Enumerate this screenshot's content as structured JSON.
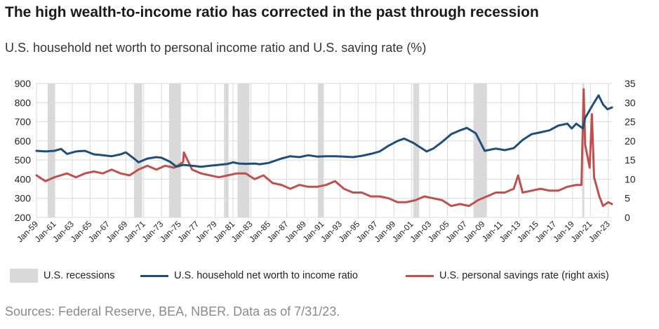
{
  "title": "The high wealth-to-income ratio has corrected in the past through recession",
  "subtitle": "U.S. household net worth to personal income ratio and U.S. saving rate (%)",
  "source": "Sources: Federal Reserve, BEA, NBER. Data as of 7/31/23.",
  "legend": {
    "recessions": "U.S. recessions",
    "networth": "U.S. household net worth to income ratio",
    "savings": "U.S. personal savings rate (right axis)"
  },
  "colors": {
    "networth": "#1f4e79",
    "savings": "#c0504d",
    "recession": "#d9d9d9",
    "grid": "#d9d9d9",
    "axis_text": "#222222"
  },
  "chart_data": {
    "type": "line",
    "x_range": [
      "1959-01",
      "2023-06"
    ],
    "x_ticks": [
      "Jan-59",
      "Jan-61",
      "Jan-63",
      "Jan-65",
      "Jan-67",
      "Jan-69",
      "Jan-71",
      "Jan-73",
      "Jan-75",
      "Jan-77",
      "Jan-79",
      "Jan-81",
      "Jan-83",
      "Jan-85",
      "Jan-87",
      "Jan-89",
      "Jan-91",
      "Jan-93",
      "Jan-95",
      "Jan-97",
      "Jan-99",
      "Jan-01",
      "Jan-03",
      "Jan-05",
      "Jan-07",
      "Jan-09",
      "Jan-11",
      "Jan-13",
      "Jan-15",
      "Jan-17",
      "Jan-19",
      "Jan-21",
      "Jan-23"
    ],
    "y_left": {
      "min": 200,
      "max": 900,
      "ticks": [
        200,
        300,
        400,
        500,
        600,
        700,
        800,
        900
      ]
    },
    "y_right": {
      "min": 0,
      "max": 35,
      "ticks": [
        0,
        5,
        10,
        15,
        20,
        25,
        30,
        35
      ]
    },
    "grid": true,
    "legend_position": "bottom",
    "recessions": [
      [
        "1960-04",
        "1961-02"
      ],
      [
        "1969-12",
        "1970-11"
      ],
      [
        "1973-11",
        "1975-03"
      ],
      [
        "1980-01",
        "1980-07"
      ],
      [
        "1981-07",
        "1982-11"
      ],
      [
        "1990-07",
        "1991-03"
      ],
      [
        "2001-03",
        "2001-11"
      ],
      [
        "2007-12",
        "2009-06"
      ],
      [
        "2020-02",
        "2020-04"
      ]
    ],
    "series": [
      {
        "name": "U.S. household net worth to income ratio",
        "axis": "left",
        "points": [
          [
            "1959-01",
            548
          ],
          [
            "1960-01",
            545
          ],
          [
            "1961-01",
            548
          ],
          [
            "1961-10",
            558
          ],
          [
            "1962-06",
            532
          ],
          [
            "1963-06",
            545
          ],
          [
            "1964-06",
            548
          ],
          [
            "1965-06",
            530
          ],
          [
            "1966-06",
            525
          ],
          [
            "1967-06",
            520
          ],
          [
            "1968-06",
            530
          ],
          [
            "1969-01",
            540
          ],
          [
            "1970-01",
            505
          ],
          [
            "1970-06",
            488
          ],
          [
            "1971-06",
            508
          ],
          [
            "1972-06",
            515
          ],
          [
            "1973-01",
            512
          ],
          [
            "1974-01",
            490
          ],
          [
            "1974-09",
            465
          ],
          [
            "1975-06",
            475
          ],
          [
            "1976-06",
            470
          ],
          [
            "1977-06",
            465
          ],
          [
            "1978-06",
            470
          ],
          [
            "1979-06",
            475
          ],
          [
            "1980-06",
            480
          ],
          [
            "1981-01",
            488
          ],
          [
            "1981-09",
            482
          ],
          [
            "1982-06",
            480
          ],
          [
            "1983-06",
            482
          ],
          [
            "1984-01",
            478
          ],
          [
            "1985-01",
            485
          ],
          [
            "1986-06",
            508
          ],
          [
            "1987-06",
            520
          ],
          [
            "1988-06",
            515
          ],
          [
            "1989-06",
            525
          ],
          [
            "1990-06",
            518
          ],
          [
            "1991-06",
            520
          ],
          [
            "1992-06",
            520
          ],
          [
            "1993-06",
            518
          ],
          [
            "1994-06",
            515
          ],
          [
            "1995-06",
            522
          ],
          [
            "1996-06",
            532
          ],
          [
            "1997-06",
            545
          ],
          [
            "1998-06",
            575
          ],
          [
            "1999-06",
            600
          ],
          [
            "2000-03",
            612
          ],
          [
            "2001-03",
            590
          ],
          [
            "2002-09",
            545
          ],
          [
            "2003-06",
            560
          ],
          [
            "2004-06",
            595
          ],
          [
            "2005-06",
            635
          ],
          [
            "2006-06",
            655
          ],
          [
            "2007-03",
            668
          ],
          [
            "2008-03",
            640
          ],
          [
            "2009-03",
            548
          ],
          [
            "2010-06",
            560
          ],
          [
            "2011-06",
            552
          ],
          [
            "2012-06",
            562
          ],
          [
            "2013-06",
            605
          ],
          [
            "2014-06",
            635
          ],
          [
            "2015-06",
            645
          ],
          [
            "2016-06",
            655
          ],
          [
            "2017-06",
            680
          ],
          [
            "2018-06",
            690
          ],
          [
            "2018-12",
            665
          ],
          [
            "2019-06",
            690
          ],
          [
            "2020-03",
            665
          ],
          [
            "2020-06",
            720
          ],
          [
            "2021-06",
            800
          ],
          [
            "2021-12",
            838
          ],
          [
            "2022-06",
            790
          ],
          [
            "2022-12",
            765
          ],
          [
            "2023-06",
            775
          ]
        ]
      },
      {
        "name": "U.S. personal savings rate (right axis)",
        "axis": "right",
        "points": [
          [
            "1959-01",
            11.0
          ],
          [
            "1960-01",
            9.5
          ],
          [
            "1961-01",
            10.5
          ],
          [
            "1962-06",
            11.5
          ],
          [
            "1963-06",
            10.5
          ],
          [
            "1964-06",
            11.5
          ],
          [
            "1965-06",
            12.0
          ],
          [
            "1966-06",
            11.5
          ],
          [
            "1967-06",
            12.5
          ],
          [
            "1968-06",
            11.5
          ],
          [
            "1969-06",
            11.0
          ],
          [
            "1970-06",
            12.5
          ],
          [
            "1971-06",
            13.5
          ],
          [
            "1972-06",
            12.5
          ],
          [
            "1973-06",
            13.5
          ],
          [
            "1974-06",
            13.0
          ],
          [
            "1975-06",
            14.5
          ],
          [
            "1975-07",
            17.0
          ],
          [
            "1976-06",
            12.5
          ],
          [
            "1977-06",
            11.5
          ],
          [
            "1978-06",
            11.0
          ],
          [
            "1979-06",
            10.5
          ],
          [
            "1980-06",
            11.0
          ],
          [
            "1981-06",
            11.5
          ],
          [
            "1982-06",
            11.5
          ],
          [
            "1983-06",
            10.0
          ],
          [
            "1984-06",
            11.0
          ],
          [
            "1985-06",
            9.0
          ],
          [
            "1986-06",
            8.5
          ],
          [
            "1987-06",
            7.5
          ],
          [
            "1988-06",
            8.5
          ],
          [
            "1989-06",
            8.0
          ],
          [
            "1990-06",
            8.0
          ],
          [
            "1991-06",
            8.5
          ],
          [
            "1992-06",
            9.5
          ],
          [
            "1993-06",
            7.5
          ],
          [
            "1994-06",
            6.5
          ],
          [
            "1995-06",
            6.5
          ],
          [
            "1996-06",
            5.5
          ],
          [
            "1997-06",
            5.5
          ],
          [
            "1998-06",
            5.0
          ],
          [
            "1999-06",
            4.0
          ],
          [
            "2000-06",
            4.0
          ],
          [
            "2001-06",
            4.5
          ],
          [
            "2002-06",
            5.5
          ],
          [
            "2003-06",
            5.0
          ],
          [
            "2004-06",
            4.5
          ],
          [
            "2005-06",
            3.0
          ],
          [
            "2006-06",
            3.5
          ],
          [
            "2007-06",
            3.0
          ],
          [
            "2008-06",
            4.5
          ],
          [
            "2009-06",
            5.5
          ],
          [
            "2010-06",
            6.5
          ],
          [
            "2011-06",
            6.5
          ],
          [
            "2012-06",
            7.5
          ],
          [
            "2012-12",
            11.0
          ],
          [
            "2013-06",
            6.5
          ],
          [
            "2014-06",
            7.0
          ],
          [
            "2015-06",
            7.5
          ],
          [
            "2016-06",
            7.0
          ],
          [
            "2017-06",
            7.0
          ],
          [
            "2018-06",
            8.0
          ],
          [
            "2019-06",
            8.5
          ],
          [
            "2020-01",
            8.5
          ],
          [
            "2020-04",
            33.5
          ],
          [
            "2020-06",
            19.0
          ],
          [
            "2020-12",
            13.0
          ],
          [
            "2021-03",
            27.0
          ],
          [
            "2021-06",
            10.5
          ],
          [
            "2022-01",
            5.5
          ],
          [
            "2022-06",
            3.0
          ],
          [
            "2023-01",
            4.0
          ],
          [
            "2023-06",
            3.5
          ]
        ]
      }
    ]
  }
}
